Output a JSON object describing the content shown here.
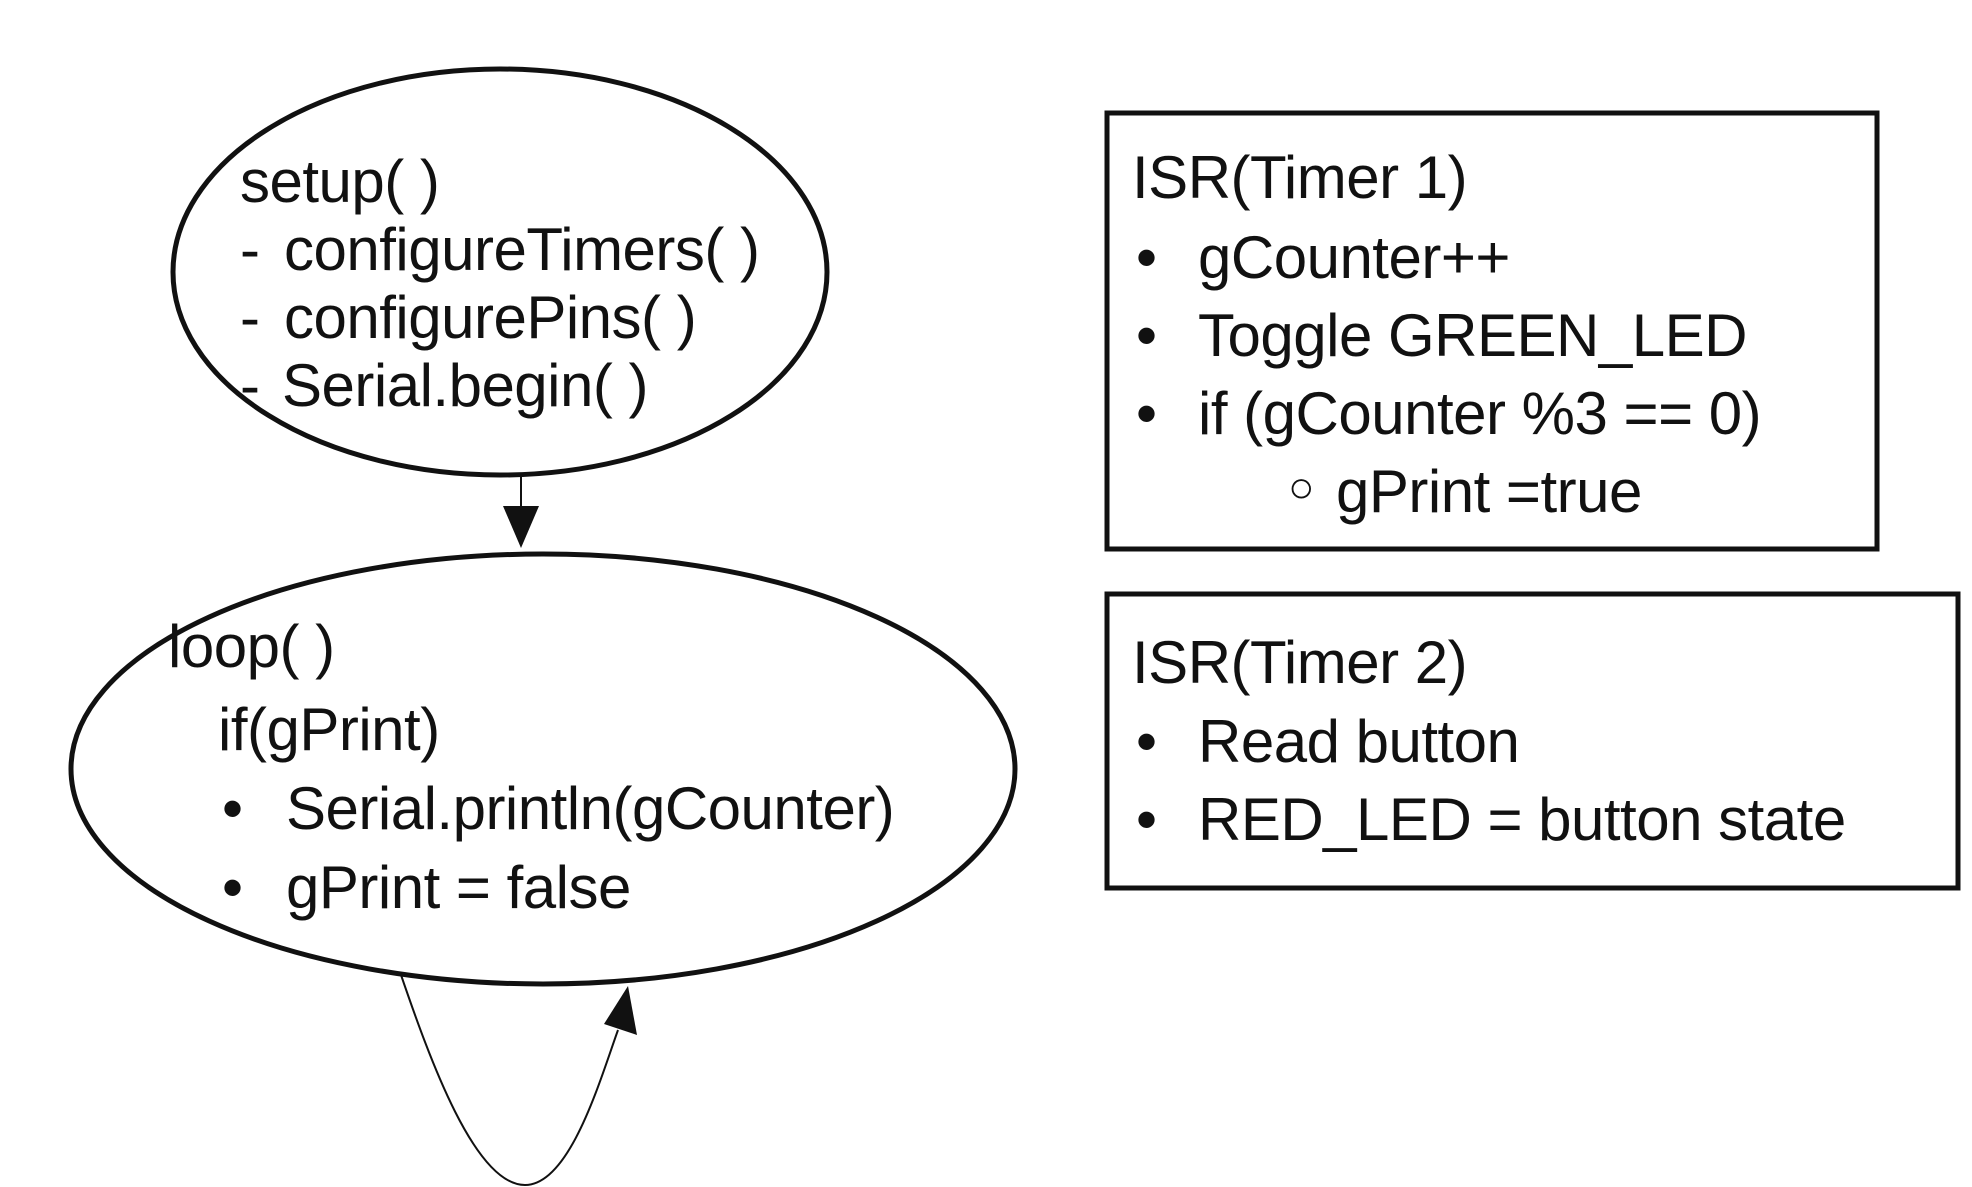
{
  "setup_node": {
    "title": "setup( )",
    "items": [
      {
        "marker": "-",
        "text": "configureTimers( )"
      },
      {
        "marker": "-",
        "text": "configurePins( )"
      },
      {
        "marker": "-",
        "text": "Serial.begin( )"
      }
    ]
  },
  "loop_node": {
    "title": "loop( )",
    "condition": "if(gPrint)",
    "items": [
      {
        "marker": "•",
        "text": "Serial.println(gCounter)"
      },
      {
        "marker": "•",
        "text": "gPrint = false"
      }
    ]
  },
  "isr_timer1": {
    "title": "ISR(Timer 1)",
    "items": [
      {
        "marker": "•",
        "text": "gCounter++"
      },
      {
        "marker": "•",
        "text": "Toggle GREEN_LED"
      },
      {
        "marker": "•",
        "text": "if (gCounter %3 == 0)"
      }
    ],
    "sub_item": {
      "marker": "○",
      "text": "gPrint =true"
    }
  },
  "isr_timer2": {
    "title": "ISR(Timer 2)",
    "items": [
      {
        "marker": "•",
        "text": "Read button"
      },
      {
        "marker": "•",
        "text": "RED_LED = button state"
      }
    ]
  },
  "colors": {
    "stroke": "#111111",
    "background": "#ffffff",
    "text": "#111111"
  }
}
